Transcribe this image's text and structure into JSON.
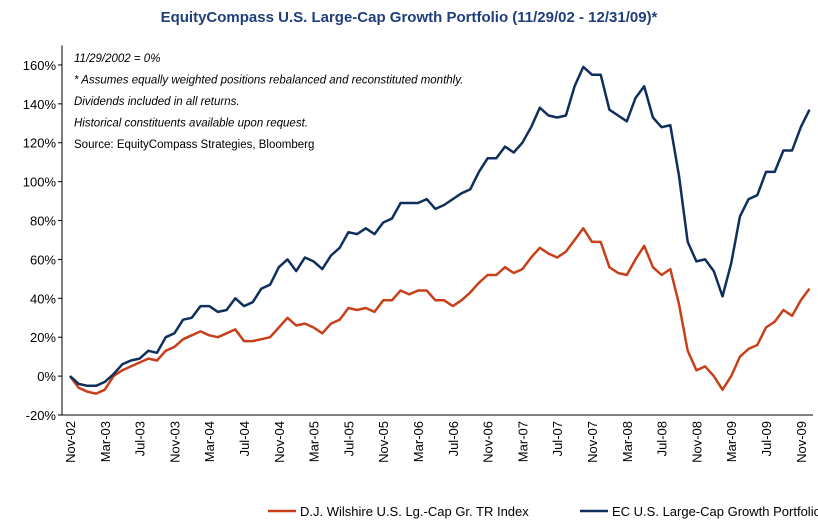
{
  "chart_data": {
    "type": "line",
    "title": "EquityCompass U.S. Large-Cap Growth Portfolio (11/29/02 - 12/31/09)*",
    "annotations": [
      "11/29/2002 = 0%",
      "*  Assumes equally weighted positions rebalanced and reconstituted monthly.",
      "Dividends included in all returns.",
      "Historical constituents available upon request.",
      "Source: EquityCompass Strategies, Bloomberg"
    ],
    "categories": [
      "Nov-02",
      null,
      null,
      null,
      "Mar-03",
      null,
      null,
      null,
      "Jul-03",
      null,
      null,
      null,
      "Nov-03",
      null,
      null,
      null,
      "Mar-04",
      null,
      null,
      null,
      "Jul-04",
      null,
      null,
      null,
      "Nov-04",
      null,
      null,
      null,
      "Mar-05",
      null,
      null,
      null,
      "Jul-05",
      null,
      null,
      null,
      "Nov-05",
      null,
      null,
      null,
      "Mar-06",
      null,
      null,
      null,
      "Jul-06",
      null,
      null,
      null,
      "Nov-06",
      null,
      null,
      null,
      "Mar-07",
      null,
      null,
      null,
      "Jul-07",
      null,
      null,
      null,
      "Nov-07",
      null,
      null,
      null,
      "Mar-08",
      null,
      null,
      null,
      "Jul-08",
      null,
      null,
      null,
      "Nov-08",
      null,
      null,
      null,
      "Mar-09",
      null,
      null,
      null,
      "Jul-09",
      null,
      null,
      null,
      "Nov-09",
      null
    ],
    "series": [
      {
        "name": "D.J. Wilshire U.S. Lg.-Cap Gr. TR Index",
        "color": "#c8401a",
        "values": [
          0,
          -6,
          -8,
          -9,
          -7,
          0,
          3,
          5,
          7,
          9,
          8,
          13,
          15,
          19,
          21,
          23,
          21,
          20,
          22,
          24,
          18,
          18,
          19,
          20,
          25,
          30,
          26,
          27,
          25,
          22,
          27,
          29,
          35,
          34,
          35,
          33,
          39,
          39,
          44,
          42,
          44,
          44,
          39,
          39,
          36,
          39,
          43,
          48,
          52,
          52,
          56,
          53,
          55,
          61,
          66,
          63,
          61,
          64,
          70,
          76,
          69,
          69,
          56,
          53,
          52,
          60,
          67,
          56,
          52,
          55,
          37,
          13,
          3,
          5,
          0,
          -7,
          0,
          10,
          14,
          16,
          25,
          28,
          34,
          31,
          39,
          45
        ]
      },
      {
        "name": "EC U.S. Large-Cap Growth Portfolio",
        "color": "#0f2f5c",
        "values": [
          0,
          -4,
          -5,
          -5,
          -3,
          1,
          6,
          8,
          9,
          13,
          12,
          20,
          22,
          29,
          30,
          36,
          36,
          33,
          34,
          40,
          36,
          38,
          45,
          47,
          56,
          60,
          54,
          61,
          59,
          55,
          62,
          66,
          74,
          73,
          76,
          73,
          79,
          81,
          89,
          89,
          89,
          91,
          86,
          88,
          91,
          94,
          96,
          105,
          112,
          112,
          118,
          115,
          120,
          128,
          138,
          134,
          133,
          134,
          149,
          159,
          155,
          155,
          137,
          134,
          131,
          143,
          149,
          133,
          128,
          129,
          103,
          69,
          59,
          60,
          54,
          41,
          58,
          82,
          91,
          93,
          105,
          105,
          116,
          116,
          128,
          137
        ]
      }
    ],
    "ylim": [
      -20,
      170
    ],
    "yticks": [
      {
        "value": -20,
        "label": "-20%"
      },
      {
        "value": 0,
        "label": "0%"
      },
      {
        "value": 20,
        "label": "20%"
      },
      {
        "value": 40,
        "label": "40%"
      },
      {
        "value": 60,
        "label": "60%"
      },
      {
        "value": 80,
        "label": "80%"
      },
      {
        "value": 100,
        "label": "100%"
      },
      {
        "value": 120,
        "label": "120%"
      },
      {
        "value": 140,
        "label": "140%"
      },
      {
        "value": 160,
        "label": "160%"
      }
    ],
    "legend": "bottom"
  }
}
